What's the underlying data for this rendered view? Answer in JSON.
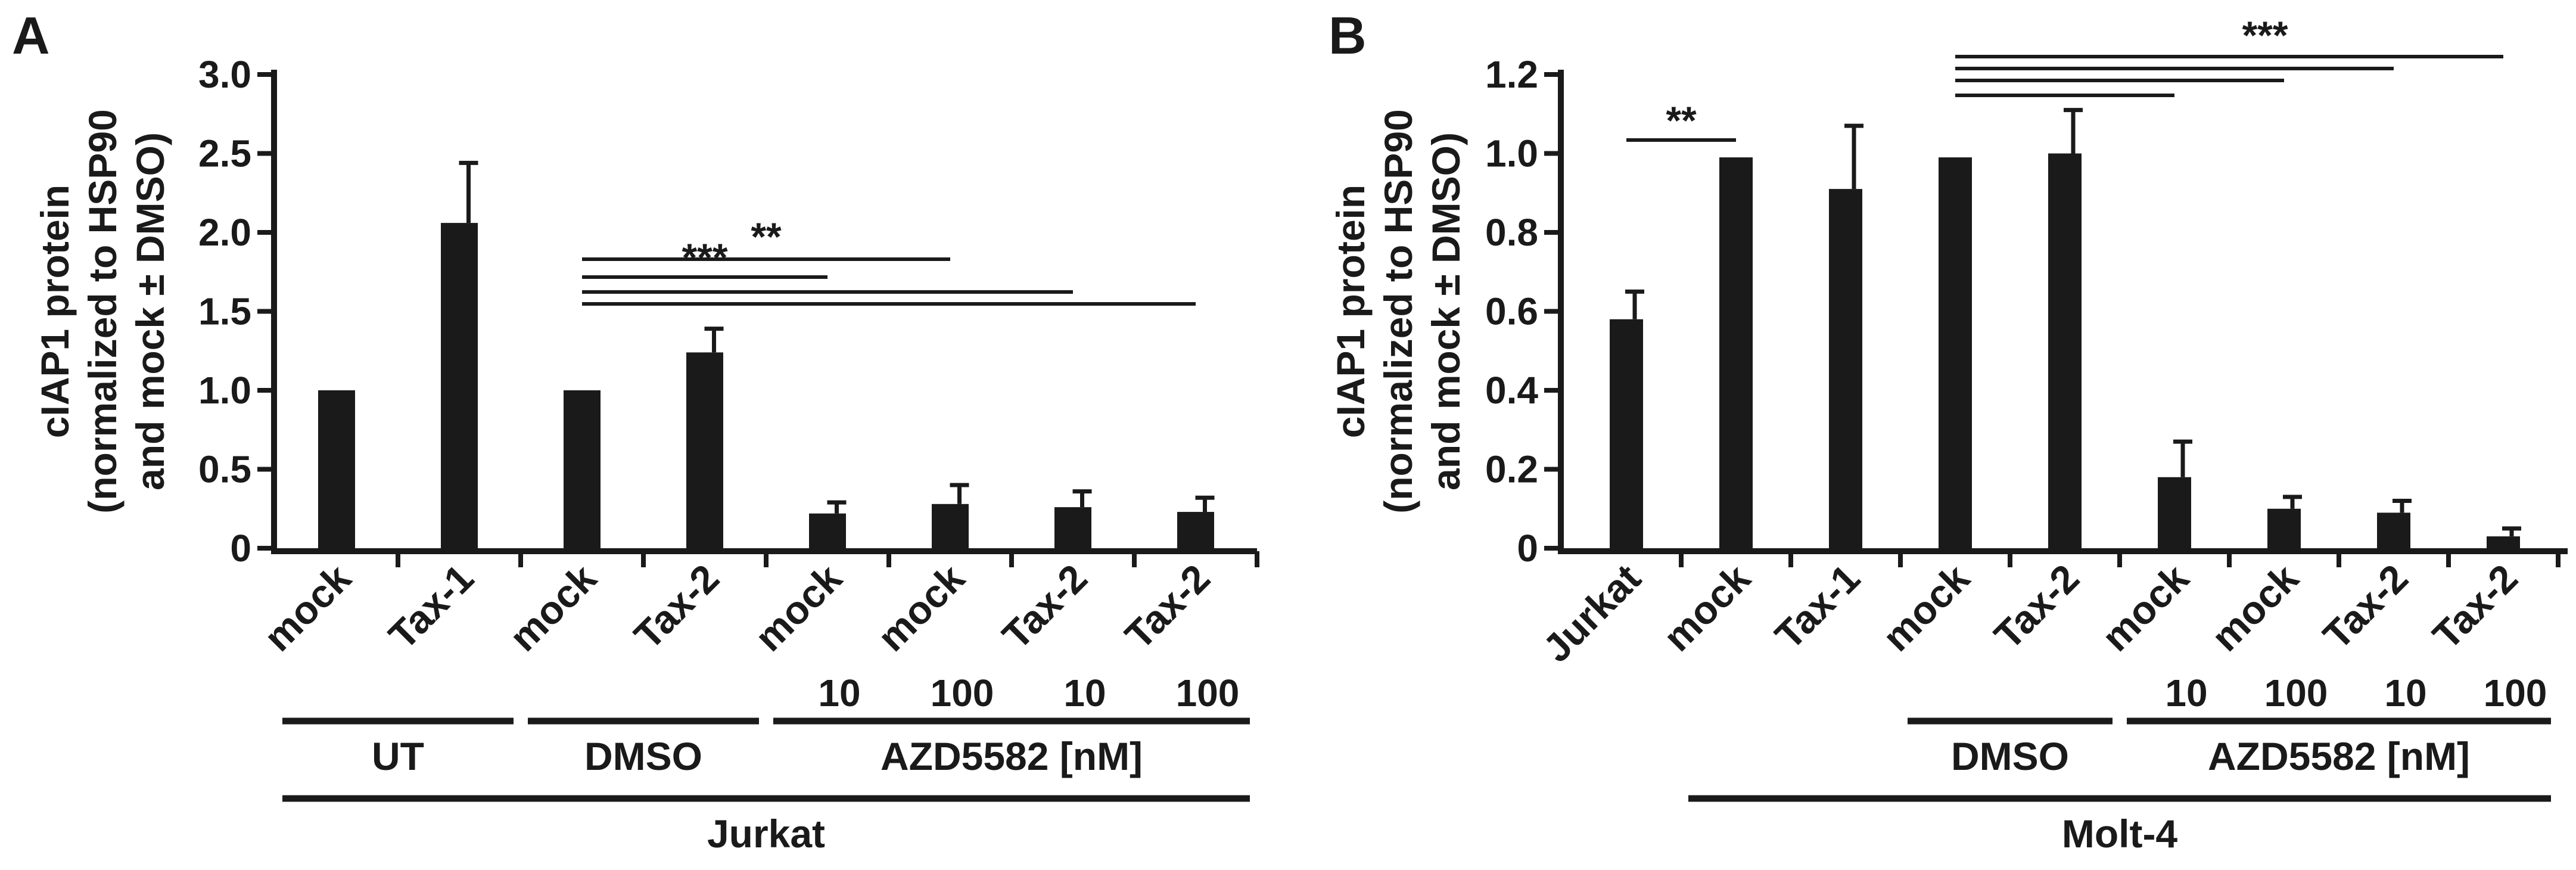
{
  "panels": [
    {
      "letter": "A",
      "ylabel_lines": [
        "cIAP1 protein",
        "(normalized to HSP90",
        "and mock ± DMSO)"
      ],
      "bracket_labels": [
        "",
        "",
        "Jurkat"
      ],
      "sig_labels": [
        "**",
        "***"
      ]
    },
    {
      "letter": "B",
      "ylabel_lines": [
        "cIAP1 protein",
        "(normalized to HSP90",
        "and mock ± DMSO)"
      ],
      "bracket_labels": [
        "",
        "",
        "Molt-4"
      ],
      "sig_labels": [
        "**",
        "***"
      ]
    }
  ],
  "chart_data": [
    {
      "type": "bar",
      "title": "",
      "ylabel": "cIAP1 protein (normalized to HSP90 and mock ± DMSO)",
      "xlabel": "",
      "ylim": [
        0,
        3.0
      ],
      "yticks": [
        0,
        0.5,
        1.0,
        1.5,
        2.0,
        2.5,
        3.0
      ],
      "ytick_labels": [
        "0",
        "0.5",
        "1.0",
        "1.5",
        "2.0",
        "2.5",
        "3.0"
      ],
      "categories": [
        "mock",
        "Tax-1",
        "mock",
        "Tax-2",
        "mock",
        "mock",
        "Tax-2",
        "Tax-2"
      ],
      "doses": [
        "",
        "",
        "",
        "",
        "10",
        "100",
        "10",
        "100"
      ],
      "values": [
        1.0,
        2.06,
        1.0,
        1.24,
        0.22,
        0.28,
        0.26,
        0.23
      ],
      "errors": [
        0.0,
        0.38,
        0.0,
        0.15,
        0.07,
        0.12,
        0.1,
        0.09
      ],
      "groups": [
        {
          "label": "UT",
          "from": 0,
          "to": 1
        },
        {
          "label": "DMSO",
          "from": 2,
          "to": 3
        },
        {
          "label": "AZD5582 [nM]",
          "from": 4,
          "to": 7
        }
      ],
      "cell_line": {
        "label": "Jurkat",
        "from": 0,
        "to": 7
      },
      "significance": [
        {
          "from": 2,
          "to": 5,
          "label": "**"
        },
        {
          "from": 2,
          "to": 4,
          "label": "***"
        },
        {
          "from": 2,
          "to": 6,
          "label": ""
        },
        {
          "from": 2,
          "to": 7,
          "label": ""
        }
      ]
    },
    {
      "type": "bar",
      "title": "",
      "ylabel": "cIAP1 protein (normalized to HSP90 and mock ± DMSO)",
      "xlabel": "",
      "ylim": [
        0,
        1.2
      ],
      "yticks": [
        0,
        0.2,
        0.4,
        0.6,
        0.8,
        1.0,
        1.2
      ],
      "ytick_labels": [
        "0",
        "0.2",
        "0.4",
        "0.6",
        "0.8",
        "1.0",
        "1.2"
      ],
      "categories": [
        "Jurkat",
        "mock",
        "Tax-1",
        "mock",
        "Tax-2",
        "mock",
        "mock",
        "Tax-2",
        "Tax-2"
      ],
      "doses": [
        "",
        "",
        "",
        "",
        "",
        "10",
        "100",
        "10",
        "100"
      ],
      "values": [
        0.58,
        0.99,
        0.91,
        0.99,
        1.0,
        0.18,
        0.1,
        0.09,
        0.03
      ],
      "errors": [
        0.07,
        0.0,
        0.16,
        0.0,
        0.11,
        0.09,
        0.03,
        0.03,
        0.02
      ],
      "groups": [
        {
          "label": "DMSO",
          "from": 3,
          "to": 4
        },
        {
          "label": "AZD5582 [nM]",
          "from": 5,
          "to": 8
        }
      ],
      "cell_line": {
        "label": "Molt-4",
        "from": 1,
        "to": 8
      },
      "significance": [
        {
          "from": 0,
          "to": 1,
          "label": "**"
        },
        {
          "from": 3,
          "to": 8,
          "label": "***"
        },
        {
          "from": 3,
          "to": 7,
          "label": ""
        },
        {
          "from": 3,
          "to": 6,
          "label": ""
        },
        {
          "from": 3,
          "to": 5,
          "label": ""
        }
      ]
    }
  ]
}
